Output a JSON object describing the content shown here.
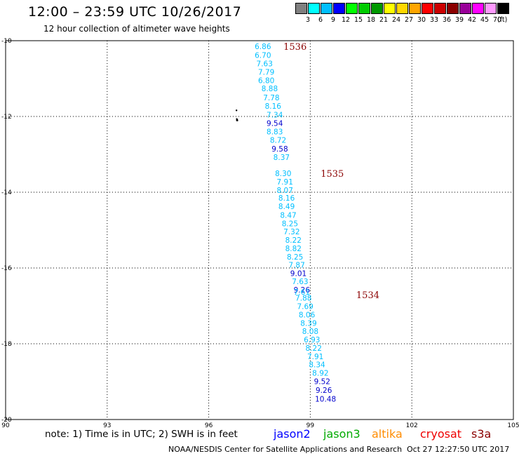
{
  "header": {
    "title": "12:00 – 23:59 UTC 10/26/2017",
    "subtitle": "12 hour collection of altimeter wave heights"
  },
  "legend": {
    "unit": "(ft)",
    "bins": [
      {
        "label": "3",
        "color": "#808080"
      },
      {
        "label": "6",
        "color": "#00ffff"
      },
      {
        "label": "9",
        "color": "#00bfff"
      },
      {
        "label": "12",
        "color": "#0000ff"
      },
      {
        "label": "15",
        "color": "#00ff00"
      },
      {
        "label": "18",
        "color": "#00cc00"
      },
      {
        "label": "21",
        "color": "#009900"
      },
      {
        "label": "24",
        "color": "#ffff00"
      },
      {
        "label": "27",
        "color": "#ffd700"
      },
      {
        "label": "30",
        "color": "#ffa500"
      },
      {
        "label": "33",
        "color": "#ff0000"
      },
      {
        "label": "36",
        "color": "#cc0000"
      },
      {
        "label": "39",
        "color": "#8b0000"
      },
      {
        "label": "42",
        "color": "#990099"
      },
      {
        "label": "45",
        "color": "#ff00ff"
      },
      {
        "label": "70",
        "color": "#ff99ff"
      },
      {
        "label": "",
        "color": "#000000"
      }
    ]
  },
  "map": {
    "lon_ticks": [
      "90",
      "93",
      "96",
      "99",
      "102",
      "105"
    ],
    "lat_ticks": [
      "-10",
      "-12",
      "-14",
      "-16",
      "-18",
      "-20"
    ],
    "lon_range": [
      90,
      105
    ],
    "lat_range": [
      -10,
      -20
    ]
  },
  "chart_data": {
    "type": "scatter",
    "x_label": "longitude",
    "y_label": "latitude",
    "points": [
      {
        "lon": 97.6,
        "lat": -10.15,
        "swh": "6.86",
        "color": "#00bfff"
      },
      {
        "lon": 97.6,
        "lat": -10.38,
        "swh": "6.70",
        "color": "#00bfff"
      },
      {
        "lon": 97.65,
        "lat": -10.6,
        "swh": "7.63",
        "color": "#00bfff"
      },
      {
        "lon": 97.7,
        "lat": -10.82,
        "swh": "7.79",
        "color": "#00bfff"
      },
      {
        "lon": 97.7,
        "lat": -11.05,
        "swh": "6.80",
        "color": "#00bfff"
      },
      {
        "lon": 97.8,
        "lat": -11.26,
        "swh": "8.88",
        "color": "#00bfff"
      },
      {
        "lon": 97.85,
        "lat": -11.5,
        "swh": "7.78",
        "color": "#00bfff"
      },
      {
        "lon": 97.9,
        "lat": -11.72,
        "swh": "8.16",
        "color": "#00bfff"
      },
      {
        "lon": 97.95,
        "lat": -11.95,
        "swh": "7.34",
        "color": "#00bfff"
      },
      {
        "lon": 97.95,
        "lat": -12.18,
        "swh": "9.54",
        "color": "#0000cd"
      },
      {
        "lon": 97.95,
        "lat": -12.4,
        "swh": "8.83",
        "color": "#00bfff"
      },
      {
        "lon": 98.05,
        "lat": -12.62,
        "swh": "8.72",
        "color": "#00bfff"
      },
      {
        "lon": 98.1,
        "lat": -12.85,
        "swh": "9.58",
        "color": "#0000cd"
      },
      {
        "lon": 98.15,
        "lat": -13.07,
        "swh": "8.37",
        "color": "#00bfff"
      },
      {
        "lon": 98.2,
        "lat": -13.5,
        "swh": "8.30",
        "color": "#00bfff"
      },
      {
        "lon": 98.25,
        "lat": -13.72,
        "swh": "7.91",
        "color": "#00bfff"
      },
      {
        "lon": 98.25,
        "lat": -13.94,
        "swh": "8.07",
        "color": "#00bfff"
      },
      {
        "lon": 98.3,
        "lat": -14.15,
        "swh": "8.16",
        "color": "#00bfff"
      },
      {
        "lon": 98.3,
        "lat": -14.37,
        "swh": "8.49",
        "color": "#00bfff"
      },
      {
        "lon": 98.35,
        "lat": -14.6,
        "swh": "8.47",
        "color": "#00bfff"
      },
      {
        "lon": 98.4,
        "lat": -14.82,
        "swh": "8.25",
        "color": "#00bfff"
      },
      {
        "lon": 98.45,
        "lat": -15.04,
        "swh": "7.32",
        "color": "#00bfff"
      },
      {
        "lon": 98.5,
        "lat": -15.26,
        "swh": "8.22",
        "color": "#00bfff"
      },
      {
        "lon": 98.5,
        "lat": -15.48,
        "swh": "8.82",
        "color": "#00bfff"
      },
      {
        "lon": 98.55,
        "lat": -15.7,
        "swh": "8.25",
        "color": "#00bfff"
      },
      {
        "lon": 98.6,
        "lat": -15.92,
        "swh": "7.87",
        "color": "#00bfff"
      },
      {
        "lon": 98.65,
        "lat": -16.14,
        "swh": "9.01",
        "color": "#0000cd"
      },
      {
        "lon": 98.7,
        "lat": -16.35,
        "swh": "7.63",
        "color": "#00bfff"
      },
      {
        "lon": 98.75,
        "lat": -16.57,
        "swh": "9.26",
        "color": "#0000cd"
      },
      {
        "lon": 98.8,
        "lat": -16.79,
        "swh": "7.88",
        "color": "#00bfff"
      },
      {
        "lon": 98.85,
        "lat": -17.01,
        "swh": "7.69",
        "color": "#00bfff"
      },
      {
        "lon": 98.9,
        "lat": -17.23,
        "swh": "8.06",
        "color": "#00bfff"
      },
      {
        "lon": 98.95,
        "lat": -17.45,
        "swh": "8.39",
        "color": "#00bfff"
      },
      {
        "lon": 99.0,
        "lat": -17.67,
        "swh": "8.08",
        "color": "#00bfff"
      },
      {
        "lon": 99.05,
        "lat": -17.89,
        "swh": "6.93",
        "color": "#00bfff"
      },
      {
        "lon": 99.1,
        "lat": -18.11,
        "swh": "8.22",
        "color": "#00bfff"
      },
      {
        "lon": 99.15,
        "lat": -18.33,
        "swh": "7.91",
        "color": "#00bfff"
      },
      {
        "lon": 99.2,
        "lat": -18.55,
        "swh": "8.34",
        "color": "#00bfff"
      },
      {
        "lon": 99.3,
        "lat": -18.77,
        "swh": "8.92",
        "color": "#00bfff"
      },
      {
        "lon": 99.35,
        "lat": -18.99,
        "swh": "9.52",
        "color": "#0000cd"
      },
      {
        "lon": 99.4,
        "lat": -19.22,
        "swh": "9.26",
        "color": "#0000cd"
      },
      {
        "lon": 99.45,
        "lat": -19.45,
        "swh": "10.48",
        "color": "#0000cd"
      }
    ],
    "extra_labels": [
      {
        "lon": 98.75,
        "lat": -16.63,
        "text": "7.61",
        "color": "#00bfff"
      }
    ],
    "pass_labels": [
      {
        "lon": 98.55,
        "lat": -10.15,
        "text": "1536"
      },
      {
        "lon": 99.65,
        "lat": -13.5,
        "text": "1535"
      },
      {
        "lon": 100.7,
        "lat": -16.7,
        "text": "1534"
      }
    ],
    "land": [
      {
        "lon": 96.85,
        "lat": -12.1,
        "name": "cocos-island"
      },
      {
        "lon": 96.82,
        "lat": -11.84,
        "name": "north-keeling-island"
      }
    ]
  },
  "footer": {
    "note": "note: 1) Time is in UTC; 2) SWH is in feet",
    "satellites": [
      {
        "name": "jason2",
        "color": "#0000ff"
      },
      {
        "name": "jason3",
        "color": "#00aa00"
      },
      {
        "name": "altika",
        "color": "#ff8c00"
      },
      {
        "name": "cryosat",
        "color": "#ee0000"
      },
      {
        "name": "s3a",
        "color": "#8b0000"
      }
    ],
    "credit": "NOAA/NESDIS Center for Satellite Applications and Research",
    "timestamp": "Oct 27 12:27:50 UTC 2017"
  }
}
